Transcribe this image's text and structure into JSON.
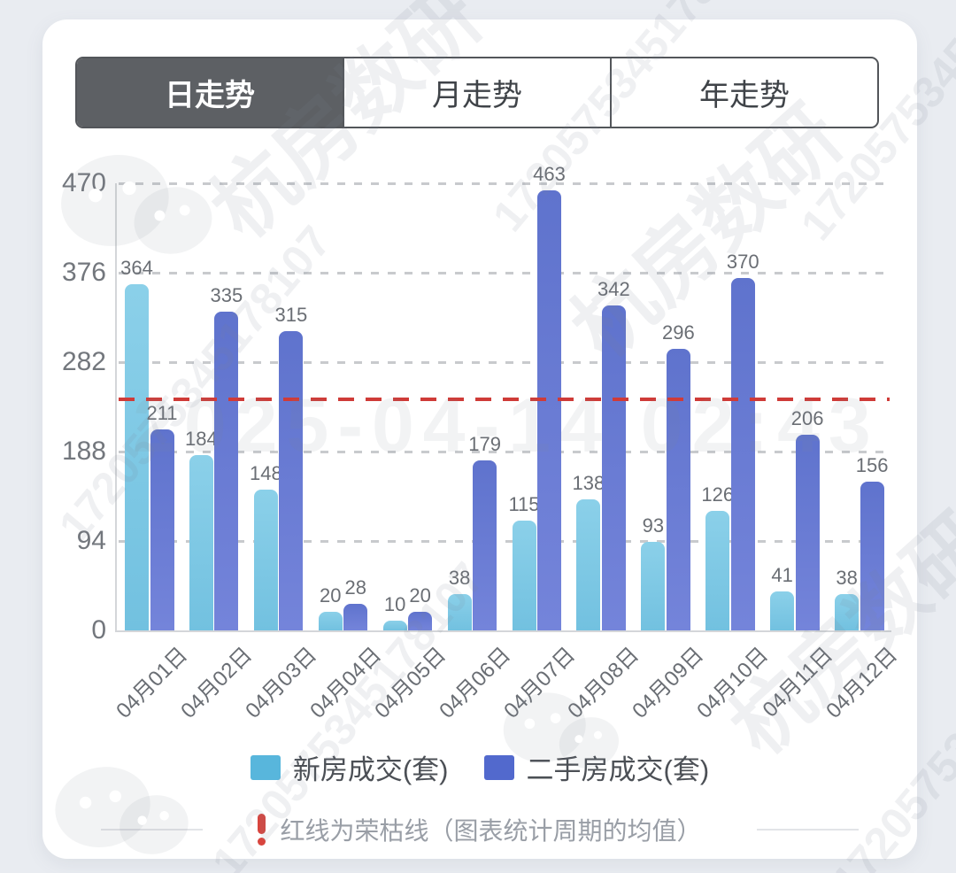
{
  "tabs": {
    "items": [
      {
        "label": "日走势",
        "active": true
      },
      {
        "label": "月走势",
        "active": false
      },
      {
        "label": "年走势",
        "active": false
      }
    ]
  },
  "chart_data": {
    "type": "bar",
    "categories": [
      "04月01日",
      "04月02日",
      "04月03日",
      "04月04日",
      "04月05日",
      "04月06日",
      "04月07日",
      "04月08日",
      "04月09日",
      "04月10日",
      "04月11日",
      "04月12日"
    ],
    "series": [
      {
        "name": "新房成交(套)",
        "legend_color": "#58b6dc",
        "bar_gradient": [
          "#8bd0e9",
          "#72c1e0"
        ],
        "values": [
          364,
          184,
          148,
          20,
          10,
          38,
          115,
          138,
          93,
          126,
          41,
          38
        ]
      },
      {
        "name": "二手房成交(套)",
        "legend_color": "#5269cd",
        "bar_gradient": [
          "#5f73cd",
          "#7484da"
        ],
        "values": [
          211,
          335,
          315,
          28,
          20,
          179,
          463,
          342,
          296,
          370,
          206,
          156
        ]
      }
    ],
    "ylim": [
      0,
      470
    ],
    "yticks": [
      0,
      94,
      188,
      282,
      376,
      470
    ],
    "grid": "horizontal-dashed",
    "legend_position": "bottom",
    "reference_line": {
      "value": 243,
      "color": "#cf3b38",
      "meaning": "荣枯线（均值）"
    }
  },
  "note": {
    "icon": "exclamation",
    "icon_color": "#d8453e",
    "text": "红线为荣枯线（图表统计周期的均值）"
  },
  "watermarks": {
    "brand": "杭房数研",
    "id_number": "1720575345178107",
    "datetime": "2025-04-14 02:43"
  }
}
